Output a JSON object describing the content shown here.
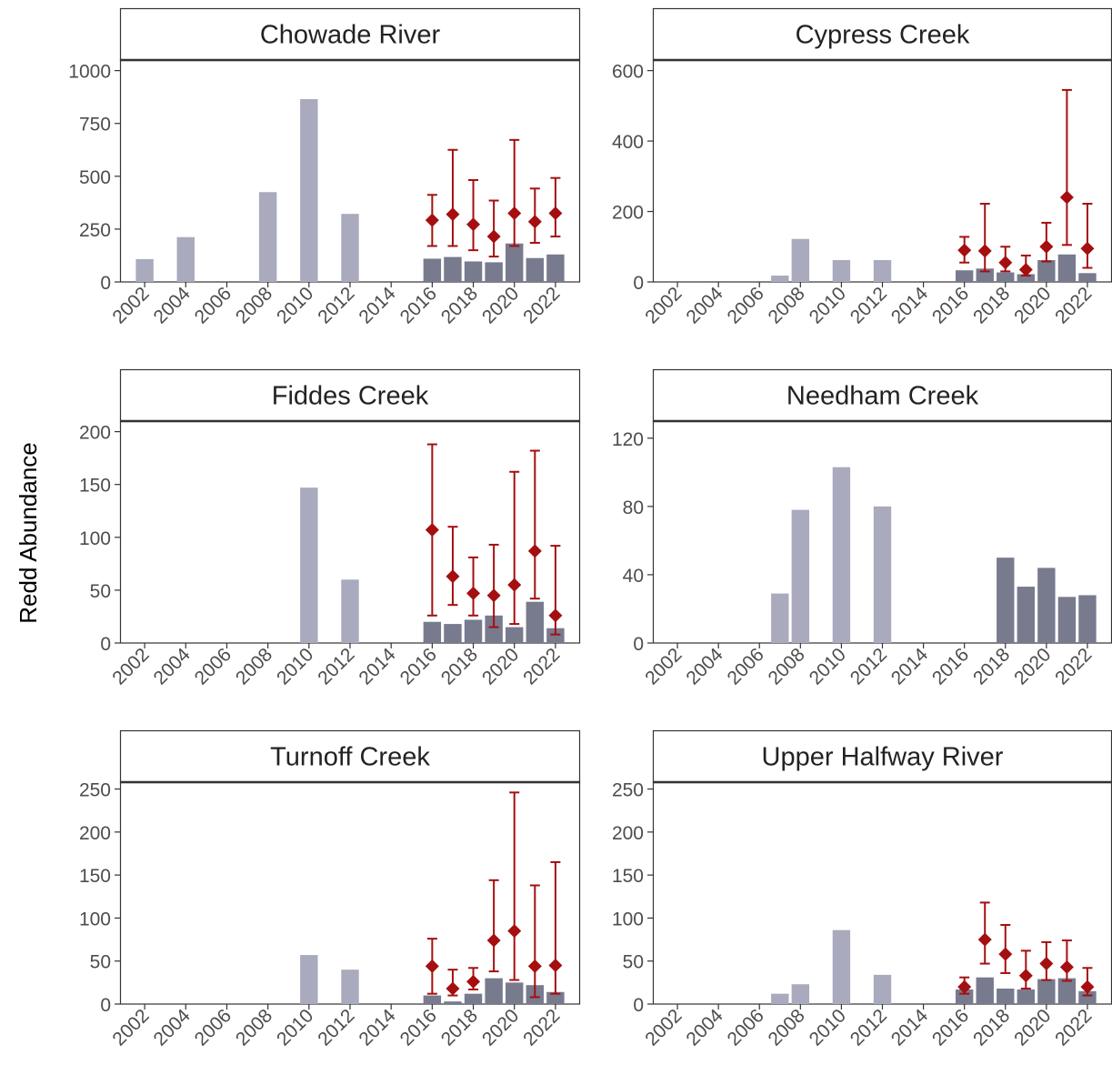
{
  "figure": {
    "ylabel": "Redd Abundance",
    "colors": {
      "historic_bar": "#a9aabd",
      "recent_bar": "#787a8e",
      "estimate": "#a50f0f",
      "strip_fill": "#ffffff",
      "axis": "#333333",
      "text": "#222222",
      "tick_text": "#4d4d4d"
    }
  },
  "chart_data": [
    {
      "type": "bar",
      "title": "Chowade River",
      "ylim": [
        0,
        1050
      ],
      "yticks": [
        0,
        250,
        500,
        750,
        1000
      ],
      "xlim": [
        2000.8,
        2023.2
      ],
      "xticks": [
        2002,
        2004,
        2006,
        2008,
        2010,
        2012,
        2014,
        2016,
        2018,
        2020,
        2022
      ],
      "historic_bars": [
        [
          2002,
          108
        ],
        [
          2004,
          212
        ],
        [
          2008,
          425
        ],
        [
          2010,
          865
        ],
        [
          2012,
          322
        ]
      ],
      "recent_bars": [
        [
          2016,
          110
        ],
        [
          2017,
          118
        ],
        [
          2018,
          97
        ],
        [
          2019,
          93
        ],
        [
          2020,
          182
        ],
        [
          2021,
          113
        ],
        [
          2022,
          130
        ]
      ],
      "estimates": [
        [
          2016,
          292,
          170,
          412
        ],
        [
          2017,
          320,
          170,
          625
        ],
        [
          2018,
          272,
          150,
          482
        ],
        [
          2019,
          215,
          120,
          385
        ],
        [
          2020,
          325,
          170,
          672
        ],
        [
          2021,
          285,
          185,
          442
        ],
        [
          2022,
          325,
          215,
          492
        ]
      ]
    },
    {
      "type": "bar",
      "title": "Cypress Creek",
      "ylim": [
        0,
        630
      ],
      "yticks": [
        0,
        200,
        400,
        600
      ],
      "xlim": [
        2000.8,
        2023.2
      ],
      "xticks": [
        2002,
        2004,
        2006,
        2008,
        2010,
        2012,
        2014,
        2016,
        2018,
        2020,
        2022
      ],
      "historic_bars": [
        [
          2007,
          18
        ],
        [
          2008,
          122
        ],
        [
          2010,
          62
        ],
        [
          2012,
          62
        ]
      ],
      "recent_bars": [
        [
          2016,
          33
        ],
        [
          2017,
          38
        ],
        [
          2018,
          27
        ],
        [
          2019,
          22
        ],
        [
          2020,
          62
        ],
        [
          2021,
          78
        ],
        [
          2022,
          25
        ]
      ],
      "estimates": [
        [
          2016,
          90,
          55,
          128
        ],
        [
          2017,
          88,
          30,
          222
        ],
        [
          2018,
          55,
          30,
          100
        ],
        [
          2019,
          35,
          18,
          75
        ],
        [
          2020,
          100,
          58,
          168
        ],
        [
          2021,
          240,
          105,
          545
        ],
        [
          2022,
          95,
          40,
          222
        ]
      ]
    },
    {
      "type": "bar",
      "title": "Fiddes Creek",
      "ylim": [
        0,
        210
      ],
      "yticks": [
        0,
        50,
        100,
        150,
        200
      ],
      "xlim": [
        2000.8,
        2023.2
      ],
      "xticks": [
        2002,
        2004,
        2006,
        2008,
        2010,
        2012,
        2014,
        2016,
        2018,
        2020,
        2022
      ],
      "historic_bars": [
        [
          2010,
          147
        ],
        [
          2012,
          60
        ]
      ],
      "recent_bars": [
        [
          2016,
          20
        ],
        [
          2017,
          18
        ],
        [
          2018,
          22
        ],
        [
          2019,
          26
        ],
        [
          2020,
          15
        ],
        [
          2021,
          39
        ],
        [
          2022,
          14
        ]
      ],
      "estimates": [
        [
          2016,
          107,
          26,
          188
        ],
        [
          2017,
          63,
          36,
          110
        ],
        [
          2018,
          47,
          26,
          81
        ],
        [
          2019,
          45,
          15,
          93
        ],
        [
          2020,
          55,
          18,
          162
        ],
        [
          2021,
          87,
          42,
          182
        ],
        [
          2022,
          26,
          8,
          92
        ]
      ]
    },
    {
      "type": "bar",
      "title": "Needham Creek",
      "ylim": [
        0,
        130
      ],
      "yticks": [
        0,
        40,
        80,
        120
      ],
      "xlim": [
        2000.8,
        2023.2
      ],
      "xticks": [
        2002,
        2004,
        2006,
        2008,
        2010,
        2012,
        2014,
        2016,
        2018,
        2020,
        2022
      ],
      "historic_bars": [
        [
          2007,
          29
        ],
        [
          2008,
          78
        ],
        [
          2010,
          103
        ],
        [
          2012,
          80
        ]
      ],
      "recent_bars": [
        [
          2018,
          50
        ],
        [
          2019,
          33
        ],
        [
          2020,
          44
        ],
        [
          2021,
          27
        ],
        [
          2022,
          28
        ]
      ],
      "estimates": []
    },
    {
      "type": "bar",
      "title": "Turnoff Creek",
      "ylim": [
        0,
        258
      ],
      "yticks": [
        0,
        50,
        100,
        150,
        200,
        250
      ],
      "xlim": [
        2000.8,
        2023.2
      ],
      "xticks": [
        2002,
        2004,
        2006,
        2008,
        2010,
        2012,
        2014,
        2016,
        2018,
        2020,
        2022
      ],
      "historic_bars": [
        [
          2010,
          57
        ],
        [
          2012,
          40
        ]
      ],
      "recent_bars": [
        [
          2016,
          10
        ],
        [
          2017,
          3
        ],
        [
          2018,
          12
        ],
        [
          2019,
          30
        ],
        [
          2020,
          25
        ],
        [
          2021,
          22
        ],
        [
          2022,
          14
        ]
      ],
      "estimates": [
        [
          2016,
          44,
          12,
          76
        ],
        [
          2017,
          18,
          10,
          40
        ],
        [
          2018,
          26,
          17,
          42
        ],
        [
          2019,
          74,
          38,
          144
        ],
        [
          2020,
          85,
          28,
          246
        ],
        [
          2021,
          44,
          8,
          138
        ],
        [
          2022,
          45,
          12,
          165
        ]
      ]
    },
    {
      "type": "bar",
      "title": "Upper Halfway River",
      "ylim": [
        0,
        258
      ],
      "yticks": [
        0,
        50,
        100,
        150,
        200,
        250
      ],
      "xlim": [
        2000.8,
        2023.2
      ],
      "xticks": [
        2002,
        2004,
        2006,
        2008,
        2010,
        2012,
        2014,
        2016,
        2018,
        2020,
        2022
      ],
      "historic_bars": [
        [
          2007,
          12
        ],
        [
          2008,
          23
        ],
        [
          2010,
          86
        ],
        [
          2012,
          34
        ]
      ],
      "recent_bars": [
        [
          2016,
          17
        ],
        [
          2017,
          31
        ],
        [
          2018,
          18
        ],
        [
          2019,
          17
        ],
        [
          2020,
          29
        ],
        [
          2021,
          30
        ],
        [
          2022,
          15
        ]
      ],
      "estimates": [
        [
          2016,
          20,
          12,
          31
        ],
        [
          2017,
          75,
          47,
          118
        ],
        [
          2018,
          58,
          36,
          92
        ],
        [
          2019,
          33,
          18,
          62
        ],
        [
          2020,
          47,
          28,
          72
        ],
        [
          2021,
          43,
          27,
          74
        ],
        [
          2022,
          20,
          10,
          42
        ]
      ]
    }
  ]
}
